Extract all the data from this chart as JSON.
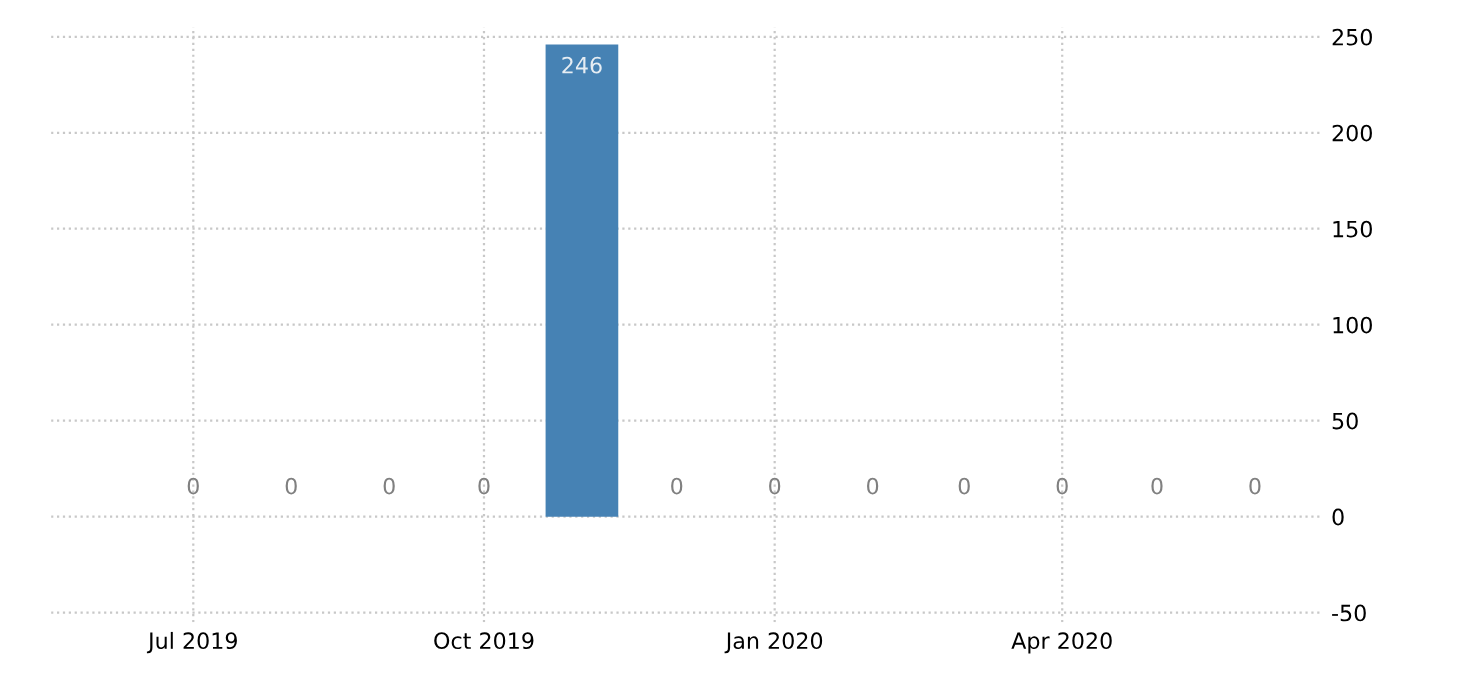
{
  "chart_data": {
    "type": "bar",
    "x": [
      "2019-07-01",
      "2019-08-01",
      "2019-09-01",
      "2019-10-01",
      "2019-11-01",
      "2019-12-01",
      "2020-01-01",
      "2020-02-01",
      "2020-03-01",
      "2020-04-01",
      "2020-05-01",
      "2020-06-01"
    ],
    "values": [
      0,
      0,
      0,
      0,
      246,
      0,
      0,
      0,
      0,
      0,
      0,
      0
    ],
    "color": "#4682b4",
    "data_labels": true,
    "xlim": [
      "2019-05-17",
      "2020-06-22"
    ],
    "xticks": [
      {
        "value": "2019-07-01",
        "label": "Jul 2019"
      },
      {
        "value": "2019-10-01",
        "label": "Oct 2019"
      },
      {
        "value": "2020-01-01",
        "label": "Jan 2020"
      },
      {
        "value": "2020-04-01",
        "label": "Apr 2020"
      }
    ],
    "ylim": [
      -55,
      255
    ],
    "yticks": [
      -50,
      0,
      50,
      100,
      150,
      200,
      250
    ],
    "grid": true
  }
}
